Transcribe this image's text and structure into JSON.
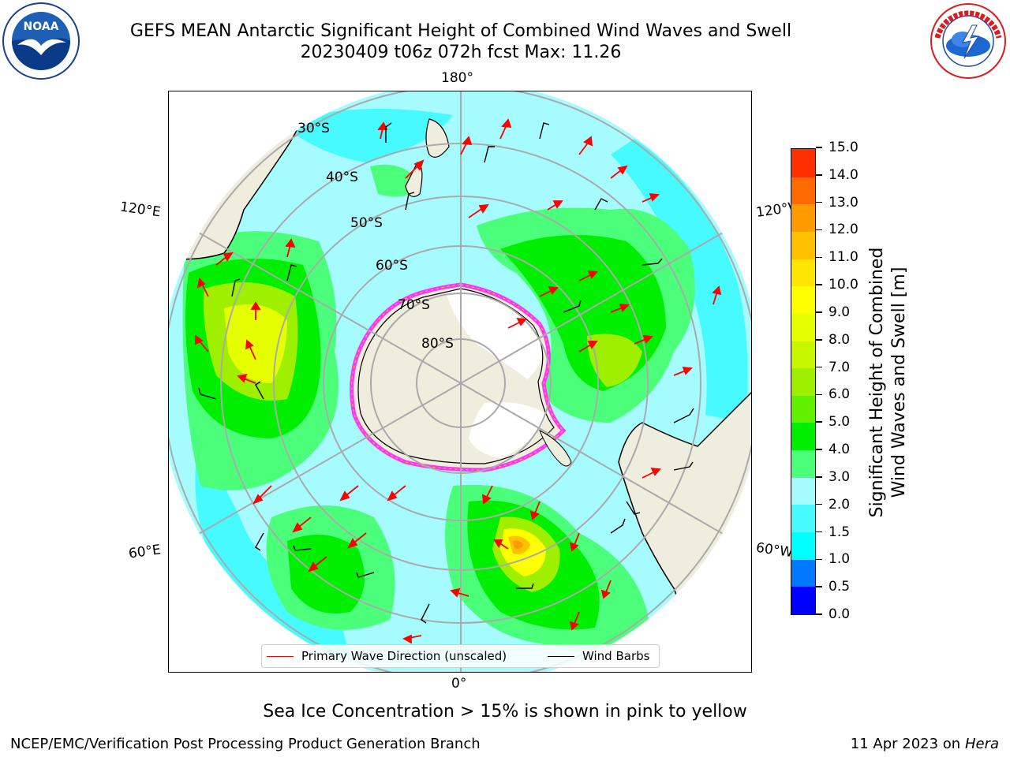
{
  "title": {
    "line1": "GEFS MEAN Antarctic Significant Height of Combined Wind Waves and Swell",
    "line2": "20230409 t06z 072h fcst   Max: 11.26"
  },
  "logos": {
    "noaa": {
      "text": "NOAA",
      "ring_text": "NATIONAL OCEANIC AND ATMOSPHERIC ADMINISTRATION · U.S. DEPARTMENT OF COMMERCE",
      "icon": "noaa-gull-logo"
    },
    "nws": {
      "ring_text": "NATIONAL WEATHER SERVICE",
      "icon": "nws-tornado-cloud-logo"
    }
  },
  "map": {
    "projection": "south-polar-stereographic",
    "longitude_labels": {
      "top": "180°",
      "bottom": "0°",
      "upper_left": "120°E",
      "upper_right": "120°W",
      "lower_left": "60°E",
      "lower_right": "60°W"
    },
    "latitude_labels": [
      "30°S",
      "40°S",
      "50°S",
      "60°S",
      "70°S",
      "80°S"
    ],
    "colors": {
      "land": "#efedde",
      "ocean_light": "#a6fbff",
      "ocean_mid": "#46faff",
      "green_light": "#4cff7a",
      "green": "#00ee00",
      "yellow_green": "#9ef000",
      "yellow": "#ffff00",
      "orange": "#ffc000",
      "ice_edge": "#ff33ff",
      "wave_arrow": "#ff0000",
      "wind_barb": "#000000"
    }
  },
  "legend": {
    "primary_wave_label": "Primary Wave Direction (unscaled)",
    "primary_wave_color": "#ff0000",
    "wind_barbs_label": "Wind Barbs",
    "wind_barbs_color": "#000000"
  },
  "colorbar": {
    "label_line1": "Significant Height of Combined",
    "label_line2": "Wind Waves and Swell [m]",
    "ticks": [
      "0.0",
      "0.5",
      "1.0",
      "1.5",
      "2.0",
      "3.0",
      "4.0",
      "5.0",
      "6.0",
      "7.0",
      "8.0",
      "9.0",
      "10.0",
      "11.0",
      "12.0",
      "13.0",
      "14.0",
      "15.0"
    ],
    "colors": [
      "#0000ff",
      "#0078ff",
      "#00ffff",
      "#46faff",
      "#a6fbff",
      "#4cff7a",
      "#00ee00",
      "#62f000",
      "#9ef000",
      "#c8f600",
      "#e6ff00",
      "#ffff00",
      "#ffe600",
      "#ffc000",
      "#ff9a00",
      "#ff6a00",
      "#ff3000",
      "#ff0000"
    ]
  },
  "subcaption": "Sea Ice Concentration > 15% is shown in pink to yellow",
  "footer": {
    "left": "NCEP/EMC/Verification Post Processing Product Generation Branch",
    "right_prefix": "11 Apr 2023 on ",
    "right_host": "Hera"
  }
}
